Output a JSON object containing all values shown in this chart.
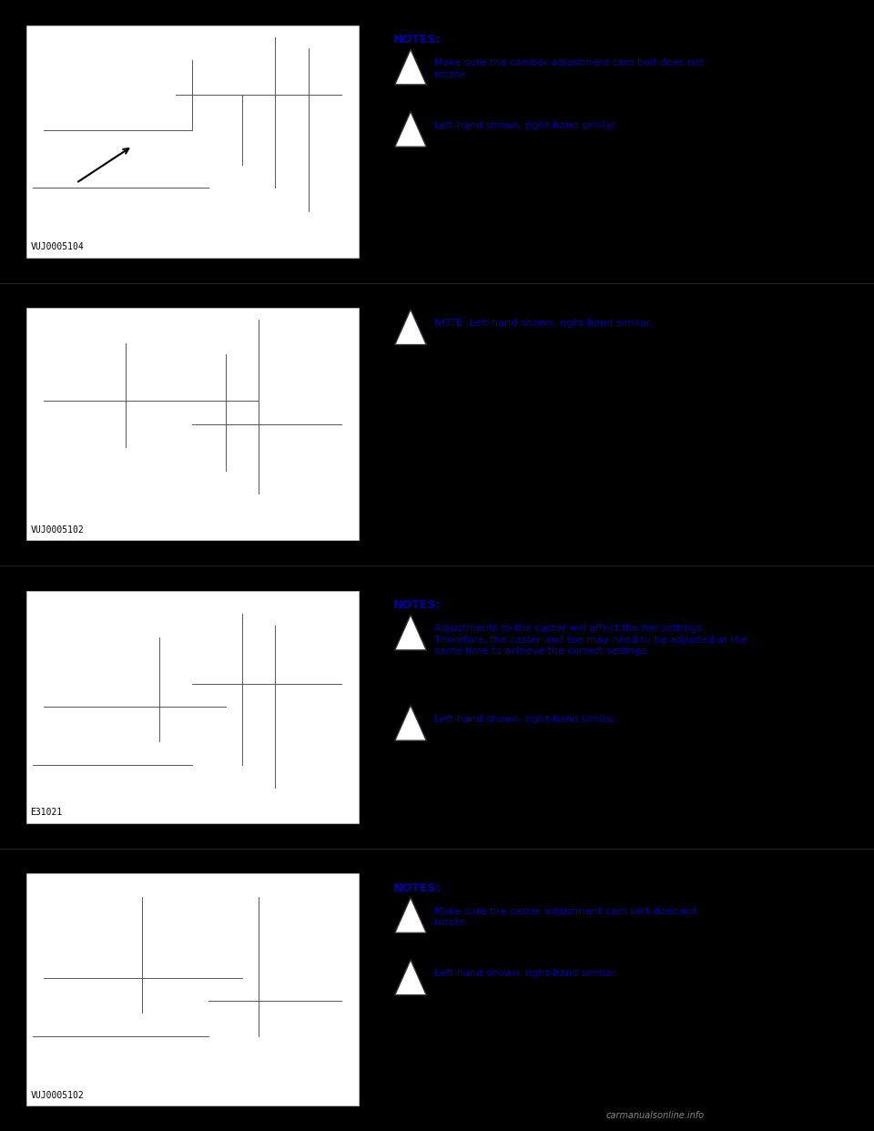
{
  "bg_color": "#000000",
  "text_color": "#0000AA",
  "img_bg_color": "#ffffff",
  "sections": [
    {
      "img_label": "VUJ0005104",
      "notes_header": "NOTES:",
      "notes": [
        {
          "has_triangle": true,
          "text": "Make sure the camber adjustment cam bolt does not\nrotate."
        },
        {
          "has_triangle": true,
          "text": "Left-hand shown, right-hand similar."
        }
      ]
    },
    {
      "img_label": "VUJ0005102",
      "notes_header": null,
      "notes": [
        {
          "has_triangle": true,
          "text": "NOTE: Left-hand shown, right-hand similar."
        }
      ]
    },
    {
      "img_label": "E31021",
      "notes_header": "NOTES:",
      "notes": [
        {
          "has_triangle": true,
          "text": "Adjustments to the caster will affect the toe settings.\nTherefore, the caster and toe may need to be adjusted at the\nsame time to achieve the correct settings."
        },
        {
          "has_triangle": true,
          "text": "Left-hand shown, right-hand similar."
        }
      ]
    },
    {
      "img_label": "VUJ0005102",
      "notes_header": "NOTES:",
      "notes": [
        {
          "has_triangle": true,
          "text": "Make sure the caster adjustment cam bolt does not\nrotate."
        },
        {
          "has_triangle": true,
          "text": "Left-hand shown, right-hand similar."
        }
      ]
    }
  ],
  "footer_text": "carmanualsonline.info",
  "font_size_notes_header": 9,
  "font_size_notes": 8,
  "font_size_label": 7,
  "triangle_size": 0.018
}
